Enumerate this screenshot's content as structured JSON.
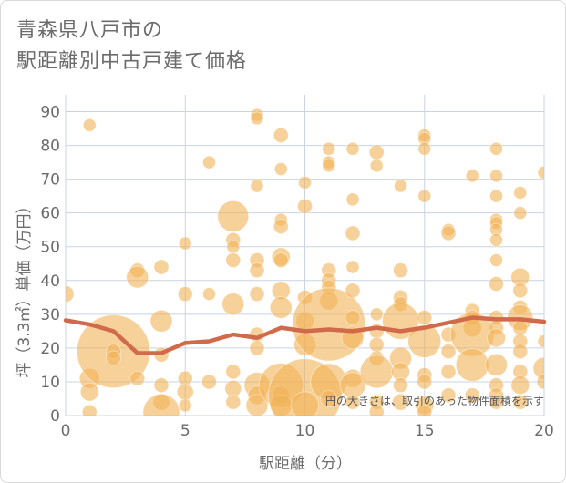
{
  "title_lines": [
    "青森県八戸市の",
    "駅距離別中古戸建て価格"
  ],
  "chart_data": {
    "type": "scatter",
    "title": "青森県八戸市の駅距離別中古戸建て価格",
    "xlabel": "駅距離（分）",
    "ylabel": "坪（3.3㎡）単価（万円）",
    "xlim": [
      0,
      20
    ],
    "ylim": [
      0,
      95
    ],
    "x_ticks": [
      "0",
      "5",
      "10",
      "15",
      "20"
    ],
    "y_ticks": [
      "0",
      "10",
      "20",
      "30",
      "40",
      "50",
      "60",
      "70",
      "80",
      "90"
    ],
    "grid": true,
    "note": "円の大きさは、取引のあった物件面積を示す",
    "colors": {
      "bubble": "#f1b357",
      "line": "#d06a4b",
      "grid": "#c9d3e4"
    },
    "points": [
      [
        0,
        36,
        9
      ],
      [
        1,
        86,
        7
      ],
      [
        1,
        11,
        11
      ],
      [
        1,
        7,
        10
      ],
      [
        1,
        1,
        8
      ],
      [
        2,
        19,
        40
      ],
      [
        2,
        19,
        8
      ],
      [
        2,
        17,
        8
      ],
      [
        3,
        43,
        8
      ],
      [
        3,
        41,
        12
      ],
      [
        3,
        11,
        8
      ],
      [
        4,
        44,
        8
      ],
      [
        4,
        28,
        12
      ],
      [
        4,
        18,
        8
      ],
      [
        4,
        9,
        8
      ],
      [
        4,
        4,
        9
      ],
      [
        4,
        1,
        20
      ],
      [
        5,
        51,
        7
      ],
      [
        5,
        36,
        8
      ],
      [
        5,
        11,
        8
      ],
      [
        5,
        7,
        9
      ],
      [
        5,
        3,
        7
      ],
      [
        6,
        75,
        7
      ],
      [
        6,
        36,
        7
      ],
      [
        6,
        10,
        8
      ],
      [
        7,
        59,
        17
      ],
      [
        7,
        52,
        8
      ],
      [
        7,
        50,
        7
      ],
      [
        7,
        46,
        8
      ],
      [
        7,
        33,
        12
      ],
      [
        7,
        13,
        8
      ],
      [
        7,
        8,
        9
      ],
      [
        7,
        4,
        8
      ],
      [
        8,
        89,
        7
      ],
      [
        8,
        88,
        7
      ],
      [
        8,
        68,
        7
      ],
      [
        8,
        46,
        8
      ],
      [
        8,
        43,
        8
      ],
      [
        8,
        36,
        8
      ],
      [
        8,
        24,
        8
      ],
      [
        8,
        20,
        8
      ],
      [
        8,
        9,
        14
      ],
      [
        8,
        6,
        10
      ],
      [
        8,
        3,
        12
      ],
      [
        9,
        83,
        8
      ],
      [
        9,
        73,
        7
      ],
      [
        9,
        58,
        7
      ],
      [
        9,
        56,
        8
      ],
      [
        9,
        47,
        10
      ],
      [
        9,
        46,
        8
      ],
      [
        9,
        37,
        10
      ],
      [
        9,
        32,
        12
      ],
      [
        9,
        9,
        24
      ],
      [
        9,
        6,
        10
      ],
      [
        9,
        3,
        12
      ],
      [
        10,
        69,
        7
      ],
      [
        10,
        62,
        8
      ],
      [
        10,
        35,
        8
      ],
      [
        10,
        28,
        10
      ],
      [
        10,
        21,
        12
      ],
      [
        10,
        6,
        40
      ],
      [
        10,
        3,
        15
      ],
      [
        11,
        79,
        7
      ],
      [
        11,
        75,
        7
      ],
      [
        11,
        74,
        7
      ],
      [
        11,
        43,
        8
      ],
      [
        11,
        40,
        8
      ],
      [
        11,
        38,
        8
      ],
      [
        11,
        34,
        10
      ],
      [
        11,
        27,
        40
      ],
      [
        11,
        10,
        20
      ],
      [
        11,
        5,
        9
      ],
      [
        12,
        79,
        7
      ],
      [
        12,
        64,
        7
      ],
      [
        12,
        54,
        8
      ],
      [
        12,
        44,
        7
      ],
      [
        12,
        37,
        8
      ],
      [
        12,
        29,
        8
      ],
      [
        12,
        23,
        12
      ],
      [
        12,
        11,
        10
      ],
      [
        12,
        9,
        14
      ],
      [
        12,
        4,
        8
      ],
      [
        13,
        78,
        8
      ],
      [
        13,
        74,
        7
      ],
      [
        13,
        30,
        7
      ],
      [
        13,
        25,
        8
      ],
      [
        13,
        21,
        8
      ],
      [
        13,
        17,
        8
      ],
      [
        13,
        13,
        18
      ],
      [
        13,
        4,
        8
      ],
      [
        13,
        1,
        8
      ],
      [
        14,
        68,
        7
      ],
      [
        14,
        43,
        8
      ],
      [
        14,
        35,
        8
      ],
      [
        14,
        33,
        8
      ],
      [
        14,
        28,
        20
      ],
      [
        14,
        17,
        12
      ],
      [
        14,
        13,
        10
      ],
      [
        14,
        9,
        8
      ],
      [
        14,
        4,
        9
      ],
      [
        15,
        83,
        7
      ],
      [
        15,
        82,
        7
      ],
      [
        15,
        79,
        7
      ],
      [
        15,
        65,
        7
      ],
      [
        15,
        29,
        8
      ],
      [
        15,
        22,
        18
      ],
      [
        15,
        12,
        8
      ],
      [
        15,
        10,
        8
      ],
      [
        15,
        3,
        10
      ],
      [
        15,
        1,
        8
      ],
      [
        16,
        55,
        7
      ],
      [
        16,
        54,
        8
      ],
      [
        16,
        24,
        8
      ],
      [
        16,
        19,
        8
      ],
      [
        16,
        13,
        8
      ],
      [
        16,
        6,
        8
      ],
      [
        17,
        71,
        7
      ],
      [
        17,
        31,
        8
      ],
      [
        17,
        29,
        8
      ],
      [
        17,
        26,
        10
      ],
      [
        17,
        24,
        24
      ],
      [
        17,
        15,
        18
      ],
      [
        17,
        6,
        8
      ],
      [
        18,
        79,
        7
      ],
      [
        18,
        71,
        7
      ],
      [
        18,
        65,
        7
      ],
      [
        18,
        58,
        7
      ],
      [
        18,
        57,
        7
      ],
      [
        18,
        55,
        7
      ],
      [
        18,
        52,
        7
      ],
      [
        18,
        46,
        7
      ],
      [
        18,
        39,
        8
      ],
      [
        18,
        29,
        8
      ],
      [
        18,
        26,
        8
      ],
      [
        18,
        23,
        10
      ],
      [
        18,
        15,
        12
      ],
      [
        18,
        9,
        8
      ],
      [
        18,
        6,
        8
      ],
      [
        18,
        4,
        8
      ],
      [
        19,
        66,
        7
      ],
      [
        19,
        60,
        7
      ],
      [
        19,
        41,
        10
      ],
      [
        19,
        37,
        8
      ],
      [
        19,
        32,
        8
      ],
      [
        19,
        29,
        14
      ],
      [
        19,
        26,
        8
      ],
      [
        19,
        22,
        8
      ],
      [
        19,
        19,
        8
      ],
      [
        19,
        13,
        8
      ],
      [
        19,
        9,
        10
      ],
      [
        19,
        4,
        8
      ],
      [
        20,
        72,
        7
      ],
      [
        20,
        22,
        7
      ],
      [
        20,
        14,
        12
      ],
      [
        20,
        10,
        8
      ]
    ],
    "trend": {
      "x": [
        0,
        1,
        2,
        3,
        4,
        5,
        6,
        7,
        8,
        9,
        10,
        11,
        12,
        13,
        14,
        15,
        16,
        17,
        18,
        19,
        20
      ],
      "y": [
        28.2,
        27,
        25,
        18.5,
        18.5,
        21.5,
        22,
        24,
        23,
        26,
        25,
        25.5,
        25,
        26,
        25,
        26,
        27.5,
        29,
        28.5,
        28.5,
        27.8
      ]
    }
  }
}
